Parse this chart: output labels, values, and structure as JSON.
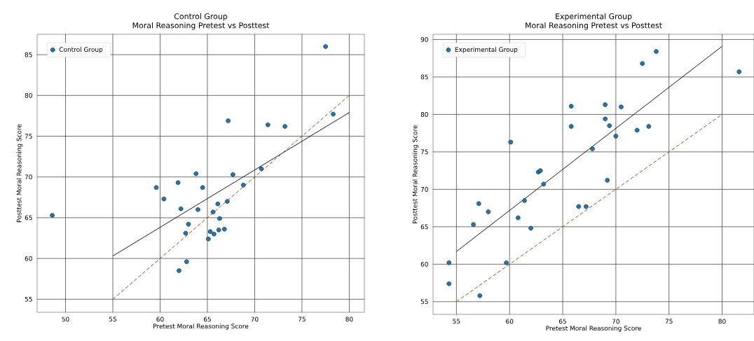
{
  "chart_data": [
    {
      "type": "scatter",
      "title": "Control Group",
      "subtitle": "Moral Reasoning Pretest vs Posttest",
      "xlabel": "Pretest Moral Reasoning Score",
      "ylabel": "Posttest Moral Reasoning Score",
      "xlim": [
        47.0,
        81.6
      ],
      "ylim": [
        53.4,
        87.5
      ],
      "xticks": [
        50,
        55,
        60,
        65,
        70,
        75,
        80
      ],
      "yticks": [
        55,
        60,
        65,
        70,
        75,
        80,
        85
      ],
      "grid": true,
      "legend": "top left",
      "series": [
        {
          "name": "Control Group",
          "color": "#1f77b4",
          "x": [
            48.6,
            59.6,
            60.4,
            61.9,
            62.2,
            62.8,
            62.0,
            62.7,
            63.0,
            63.8,
            64.0,
            64.5,
            65.1,
            65.3,
            65.7,
            65.6,
            66.1,
            66.3,
            66.2,
            66.8,
            67.1,
            67.2,
            67.7,
            68.8,
            70.7,
            71.4,
            73.2,
            77.5,
            78.3
          ],
          "values": [
            65.3,
            68.7,
            67.3,
            69.3,
            66.1,
            59.6,
            58.5,
            63.1,
            64.2,
            70.4,
            66.0,
            68.7,
            62.4,
            63.3,
            63.0,
            65.7,
            66.7,
            64.9,
            63.5,
            63.6,
            67.0,
            76.9,
            70.3,
            69.0,
            71.0,
            76.4,
            76.2,
            86.0,
            77.7
          ]
        },
        {
          "type": "line",
          "color": "#000000",
          "line_style": "solid",
          "x": [
            55,
            80
          ],
          "values": [
            60.3,
            77.9
          ]
        },
        {
          "type": "line",
          "color": "#8b4513",
          "line_style": "dashed",
          "x": [
            55,
            80
          ],
          "values": [
            55,
            80
          ]
        }
      ]
    },
    {
      "type": "scatter",
      "title": "Experimental Group",
      "subtitle": "Moral Reasoning Pretest vs Posttest",
      "xlabel": "Pretest Moral Reasoning Score",
      "ylabel": "Posttest Moral Reasoning Score",
      "xlim": [
        52.8,
        83.0
      ],
      "ylim": [
        53.3,
        90.7
      ],
      "xticks": [
        55,
        60,
        65,
        70,
        75,
        80
      ],
      "yticks": [
        55,
        60,
        65,
        70,
        75,
        80,
        85,
        90
      ],
      "grid": true,
      "legend": "top left",
      "series": [
        {
          "name": "Experimental Group",
          "color": "#1f77b4",
          "x": [
            54.3,
            54.3,
            56.6,
            57.1,
            57.2,
            58.0,
            59.7,
            60.1,
            60.8,
            61.4,
            62.0,
            62.7,
            62.9,
            63.2,
            65.8,
            65.8,
            66.5,
            67.2,
            67.8,
            69.0,
            69.0,
            69.2,
            69.4,
            70.0,
            70.5,
            72.0,
            72.5,
            73.1,
            73.8,
            81.6
          ],
          "values": [
            60.2,
            57.4,
            65.3,
            68.1,
            55.8,
            67.0,
            60.2,
            76.3,
            66.2,
            68.5,
            64.8,
            72.3,
            72.5,
            70.7,
            81.1,
            78.4,
            67.7,
            67.7,
            75.4,
            81.3,
            79.4,
            71.2,
            78.5,
            77.1,
            81.0,
            77.9,
            86.8,
            78.4,
            88.4,
            85.7
          ]
        },
        {
          "type": "line",
          "color": "#000000",
          "line_style": "solid",
          "x": [
            55,
            80
          ],
          "values": [
            61.7,
            89.1
          ]
        },
        {
          "type": "line",
          "color": "#8b4513",
          "line_style": "dashed",
          "x": [
            55,
            80
          ],
          "values": [
            55,
            80
          ]
        }
      ]
    }
  ]
}
